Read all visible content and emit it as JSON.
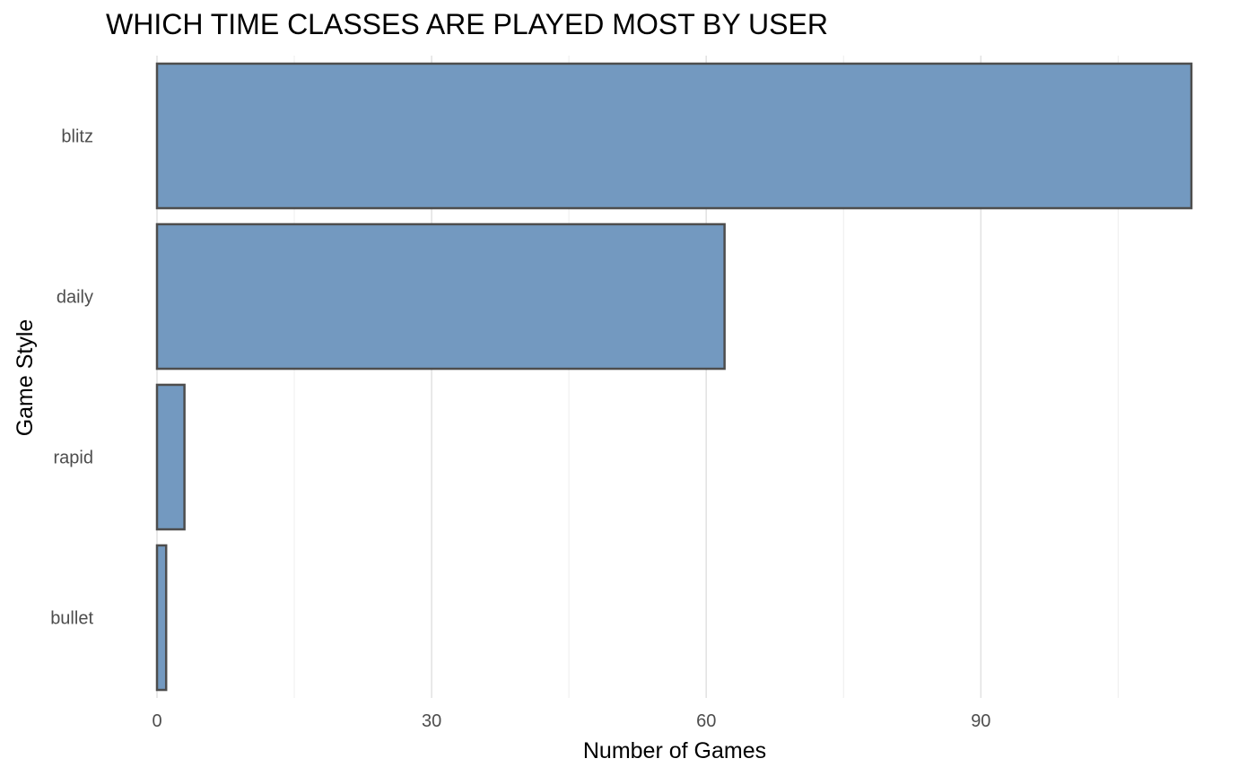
{
  "chart_data": {
    "type": "bar",
    "orientation": "horizontal",
    "title": "WHICH TIME CLASSES ARE PLAYED MOST BY USER",
    "xlabel": "Number of Games",
    "ylabel": "Game Style",
    "categories": [
      "blitz",
      "daily",
      "rapid",
      "bullet"
    ],
    "values": [
      113,
      62,
      3,
      1
    ],
    "xlim": [
      0,
      113
    ],
    "x_ticks": [
      0,
      30,
      60,
      90
    ],
    "x_minor_ticks": [
      15,
      45,
      75,
      105
    ],
    "grid": true,
    "legend": "none",
    "colors": {
      "bar_fill": "#7399c0",
      "bar_stroke": "#4d4d4d"
    }
  }
}
